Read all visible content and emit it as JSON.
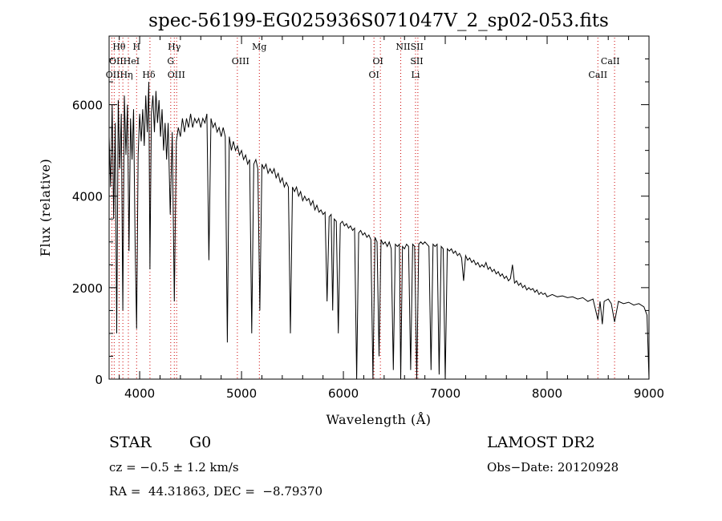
{
  "chart_data": {
    "type": "line",
    "title": "spec-56199-EG025936S071047V_2_sp02-053.fits",
    "xlabel": "Wavelength (Å)",
    "ylabel": "Flux (relative)",
    "xlim": [
      3700,
      9000
    ],
    "ylim": [
      0,
      7500
    ],
    "xticks": [
      4000,
      5000,
      6000,
      7000,
      8000,
      9000
    ],
    "xtick_labels": [
      "4000",
      "5000",
      "6000",
      "7000",
      "8000",
      "9000"
    ],
    "yticks": [
      0,
      2000,
      4000,
      6000
    ],
    "ytick_labels": [
      "0",
      "2000",
      "4000",
      "6000"
    ],
    "grid": false,
    "line_color": "#000000",
    "marker_color": "#cc0000",
    "spectrum_points": [
      [
        3700,
        5300
      ],
      [
        3715,
        4200
      ],
      [
        3730,
        6000
      ],
      [
        3745,
        3500
      ],
      [
        3760,
        5600
      ],
      [
        3775,
        1000
      ],
      [
        3790,
        6100
      ],
      [
        3805,
        4600
      ],
      [
        3820,
        5800
      ],
      [
        3835,
        1500
      ],
      [
        3850,
        6200
      ],
      [
        3865,
        4900
      ],
      [
        3880,
        6000
      ],
      [
        3895,
        2800
      ],
      [
        3910,
        5700
      ],
      [
        3925,
        4800
      ],
      [
        3940,
        5900
      ],
      [
        3955,
        3000
      ],
      [
        3970,
        1100
      ],
      [
        3985,
        4900
      ],
      [
        4000,
        5800
      ],
      [
        4015,
        5200
      ],
      [
        4030,
        5900
      ],
      [
        4045,
        5100
      ],
      [
        4060,
        6200
      ],
      [
        4075,
        5400
      ],
      [
        4090,
        6500
      ],
      [
        4101,
        2400
      ],
      [
        4115,
        5800
      ],
      [
        4130,
        6200
      ],
      [
        4145,
        5400
      ],
      [
        4160,
        6300
      ],
      [
        4175,
        5600
      ],
      [
        4190,
        6100
      ],
      [
        4205,
        5300
      ],
      [
        4220,
        5900
      ],
      [
        4235,
        5000
      ],
      [
        4250,
        5600
      ],
      [
        4265,
        4800
      ],
      [
        4280,
        5600
      ],
      [
        4300,
        3600
      ],
      [
        4320,
        5400
      ],
      [
        4340,
        1700
      ],
      [
        4360,
        5200
      ],
      [
        4380,
        5500
      ],
      [
        4400,
        5300
      ],
      [
        4420,
        5700
      ],
      [
        4440,
        5400
      ],
      [
        4460,
        5700
      ],
      [
        4480,
        5500
      ],
      [
        4500,
        5800
      ],
      [
        4520,
        5500
      ],
      [
        4540,
        5700
      ],
      [
        4560,
        5600
      ],
      [
        4580,
        5700
      ],
      [
        4600,
        5500
      ],
      [
        4620,
        5700
      ],
      [
        4640,
        5600
      ],
      [
        4660,
        5800
      ],
      [
        4680,
        2600
      ],
      [
        4700,
        5700
      ],
      [
        4720,
        5500
      ],
      [
        4740,
        5600
      ],
      [
        4760,
        5400
      ],
      [
        4780,
        5500
      ],
      [
        4800,
        5300
      ],
      [
        4820,
        5500
      ],
      [
        4840,
        5300
      ],
      [
        4861,
        800
      ],
      [
        4880,
        5300
      ],
      [
        4900,
        5000
      ],
      [
        4920,
        5200
      ],
      [
        4940,
        5000
      ],
      [
        4960,
        5100
      ],
      [
        4980,
        4900
      ],
      [
        5000,
        5000
      ],
      [
        5020,
        4800
      ],
      [
        5040,
        4900
      ],
      [
        5060,
        4700
      ],
      [
        5080,
        4800
      ],
      [
        5100,
        1000
      ],
      [
        5120,
        4700
      ],
      [
        5140,
        4800
      ],
      [
        5160,
        4600
      ],
      [
        5180,
        1500
      ],
      [
        5200,
        4700
      ],
      [
        5220,
        4600
      ],
      [
        5240,
        4700
      ],
      [
        5260,
        4500
      ],
      [
        5280,
        4600
      ],
      [
        5300,
        4500
      ],
      [
        5320,
        4600
      ],
      [
        5340,
        4400
      ],
      [
        5360,
        4500
      ],
      [
        5380,
        4300
      ],
      [
        5400,
        4400
      ],
      [
        5420,
        4200
      ],
      [
        5440,
        4300
      ],
      [
        5460,
        4200
      ],
      [
        5480,
        1000
      ],
      [
        5500,
        4200
      ],
      [
        5520,
        4100
      ],
      [
        5540,
        4200
      ],
      [
        5560,
        4000
      ],
      [
        5580,
        4100
      ],
      [
        5600,
        3900
      ],
      [
        5620,
        4000
      ],
      [
        5640,
        3900
      ],
      [
        5660,
        3950
      ],
      [
        5680,
        3800
      ],
      [
        5700,
        3900
      ],
      [
        5720,
        3700
      ],
      [
        5740,
        3800
      ],
      [
        5760,
        3650
      ],
      [
        5780,
        3700
      ],
      [
        5800,
        3600
      ],
      [
        5820,
        3650
      ],
      [
        5840,
        1700
      ],
      [
        5860,
        3550
      ],
      [
        5880,
        3600
      ],
      [
        5895,
        1500
      ],
      [
        5910,
        3500
      ],
      [
        5930,
        3450
      ],
      [
        5950,
        1000
      ],
      [
        5970,
        3400
      ],
      [
        5990,
        3450
      ],
      [
        6010,
        3350
      ],
      [
        6030,
        3400
      ],
      [
        6050,
        3300
      ],
      [
        6070,
        3350
      ],
      [
        6090,
        3250
      ],
      [
        6110,
        3300
      ],
      [
        6130,
        0
      ],
      [
        6150,
        3200
      ],
      [
        6170,
        3250
      ],
      [
        6190,
        3150
      ],
      [
        6210,
        3200
      ],
      [
        6230,
        3100
      ],
      [
        6250,
        3150
      ],
      [
        6270,
        3050
      ],
      [
        6290,
        0
      ],
      [
        6310,
        3100
      ],
      [
        6330,
        3000
      ],
      [
        6350,
        500
      ],
      [
        6370,
        3050
      ],
      [
        6390,
        2950
      ],
      [
        6410,
        3000
      ],
      [
        6430,
        2900
      ],
      [
        6450,
        3000
      ],
      [
        6470,
        2850
      ],
      [
        6490,
        200
      ],
      [
        6510,
        2950
      ],
      [
        6530,
        2900
      ],
      [
        6550,
        2950
      ],
      [
        6563,
        0
      ],
      [
        6580,
        2900
      ],
      [
        6600,
        2850
      ],
      [
        6620,
        2950
      ],
      [
        6640,
        2900
      ],
      [
        6660,
        200
      ],
      [
        6680,
        2950
      ],
      [
        6700,
        2900
      ],
      [
        6720,
        0
      ],
      [
        6740,
        2950
      ],
      [
        6760,
        3000
      ],
      [
        6780,
        2950
      ],
      [
        6800,
        3000
      ],
      [
        6820,
        2950
      ],
      [
        6840,
        2900
      ],
      [
        6860,
        200
      ],
      [
        6880,
        2950
      ],
      [
        6900,
        2900
      ],
      [
        6920,
        2950
      ],
      [
        6940,
        100
      ],
      [
        6960,
        2900
      ],
      [
        6980,
        2850
      ],
      [
        7000,
        0
      ],
      [
        7020,
        2850
      ],
      [
        7040,
        2800
      ],
      [
        7060,
        2850
      ],
      [
        7080,
        2750
      ],
      [
        7100,
        2800
      ],
      [
        7120,
        2700
      ],
      [
        7140,
        2750
      ],
      [
        7160,
        2650
      ],
      [
        7180,
        2150
      ],
      [
        7200,
        2700
      ],
      [
        7220,
        2600
      ],
      [
        7240,
        2650
      ],
      [
        7260,
        2550
      ],
      [
        7280,
        2600
      ],
      [
        7300,
        2500
      ],
      [
        7320,
        2550
      ],
      [
        7340,
        2450
      ],
      [
        7360,
        2500
      ],
      [
        7380,
        2450
      ],
      [
        7400,
        2550
      ],
      [
        7420,
        2400
      ],
      [
        7440,
        2450
      ],
      [
        7460,
        2350
      ],
      [
        7480,
        2400
      ],
      [
        7500,
        2300
      ],
      [
        7520,
        2350
      ],
      [
        7540,
        2250
      ],
      [
        7560,
        2300
      ],
      [
        7580,
        2200
      ],
      [
        7600,
        2250
      ],
      [
        7620,
        2150
      ],
      [
        7640,
        2200
      ],
      [
        7660,
        2500
      ],
      [
        7680,
        2100
      ],
      [
        7700,
        2150
      ],
      [
        7720,
        2050
      ],
      [
        7740,
        2100
      ],
      [
        7760,
        2000
      ],
      [
        7780,
        2050
      ],
      [
        7800,
        1950
      ],
      [
        7820,
        2000
      ],
      [
        7840,
        1950
      ],
      [
        7860,
        1980
      ],
      [
        7880,
        1900
      ],
      [
        7900,
        1950
      ],
      [
        7920,
        1850
      ],
      [
        7940,
        1900
      ],
      [
        7960,
        1850
      ],
      [
        7980,
        1880
      ],
      [
        8000,
        1800
      ],
      [
        8050,
        1850
      ],
      [
        8100,
        1800
      ],
      [
        8150,
        1820
      ],
      [
        8200,
        1780
      ],
      [
        8250,
        1800
      ],
      [
        8300,
        1750
      ],
      [
        8350,
        1780
      ],
      [
        8400,
        1700
      ],
      [
        8450,
        1750
      ],
      [
        8498,
        1300
      ],
      [
        8520,
        1700
      ],
      [
        8542,
        1200
      ],
      [
        8560,
        1700
      ],
      [
        8600,
        1750
      ],
      [
        8630,
        1650
      ],
      [
        8662,
        1250
      ],
      [
        8700,
        1700
      ],
      [
        8750,
        1650
      ],
      [
        8800,
        1680
      ],
      [
        8850,
        1620
      ],
      [
        8900,
        1650
      ],
      [
        8950,
        1580
      ],
      [
        8980,
        1400
      ],
      [
        9000,
        0
      ]
    ],
    "line_markers": {
      "top_row": [
        {
          "label": "Hθ",
          "x": 3798
        },
        {
          "label": "H",
          "x": 3970
        },
        {
          "label": "Hγ",
          "x": 4340
        },
        {
          "label": "Mg",
          "x": 5175
        },
        {
          "label": "NIISII",
          "x": 6650
        }
      ],
      "middle_row": [
        {
          "label": "OIIHeI",
          "x": 3850
        },
        {
          "label": "G",
          "x": 4305
        },
        {
          "label": "OIII",
          "x": 4990
        },
        {
          "label": "OI",
          "x": 6340
        },
        {
          "label": "SII",
          "x": 6720
        },
        {
          "label": "CaII",
          "x": 8620
        }
      ],
      "bottom_row": [
        {
          "label": "OIIHη",
          "x": 3800
        },
        {
          "label": "Hδ",
          "x": 4090
        },
        {
          "label": "OIII",
          "x": 4360
        },
        {
          "label": "OI",
          "x": 6300
        },
        {
          "label": "Li",
          "x": 6708
        },
        {
          "label": "CaII",
          "x": 8498
        }
      ],
      "dotted_lines_x": [
        3727,
        3750,
        3798,
        3835,
        3889,
        3970,
        4101,
        4305,
        4340,
        4363,
        4959,
        5175,
        6300,
        6363,
        6563,
        6708,
        6731,
        8498,
        8662
      ]
    }
  },
  "info": {
    "object_class": "STAR",
    "subclass": "G0",
    "survey": "LAMOST DR2",
    "redshift": "cz = −0.5 ± 1.2 km/s",
    "obs_date": "Obs−Date: 20120928",
    "coords": "RA =  44.31863, DEC =  −8.79370"
  }
}
